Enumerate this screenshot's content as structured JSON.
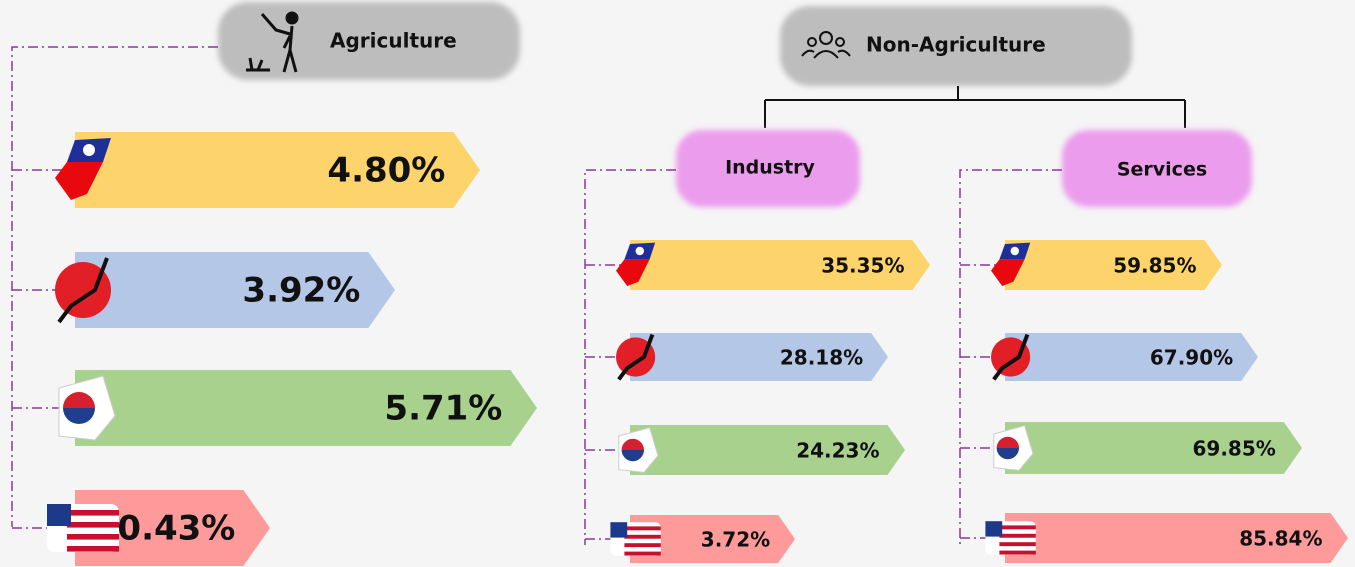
{
  "agriculture": {
    "title": "Agriculture",
    "values": [
      "4.80%",
      "3.92%",
      "5.71%",
      "0.43%"
    ]
  },
  "non_agriculture": {
    "title": "Non-Agriculture",
    "industry": {
      "title": "Industry",
      "values": [
        "35.35%",
        "28.18%",
        "24.23%",
        "3.72%"
      ]
    },
    "services": {
      "title": "Services",
      "values": [
        "59.85%",
        "67.90%",
        "69.85%",
        "85.84%"
      ]
    }
  }
}
